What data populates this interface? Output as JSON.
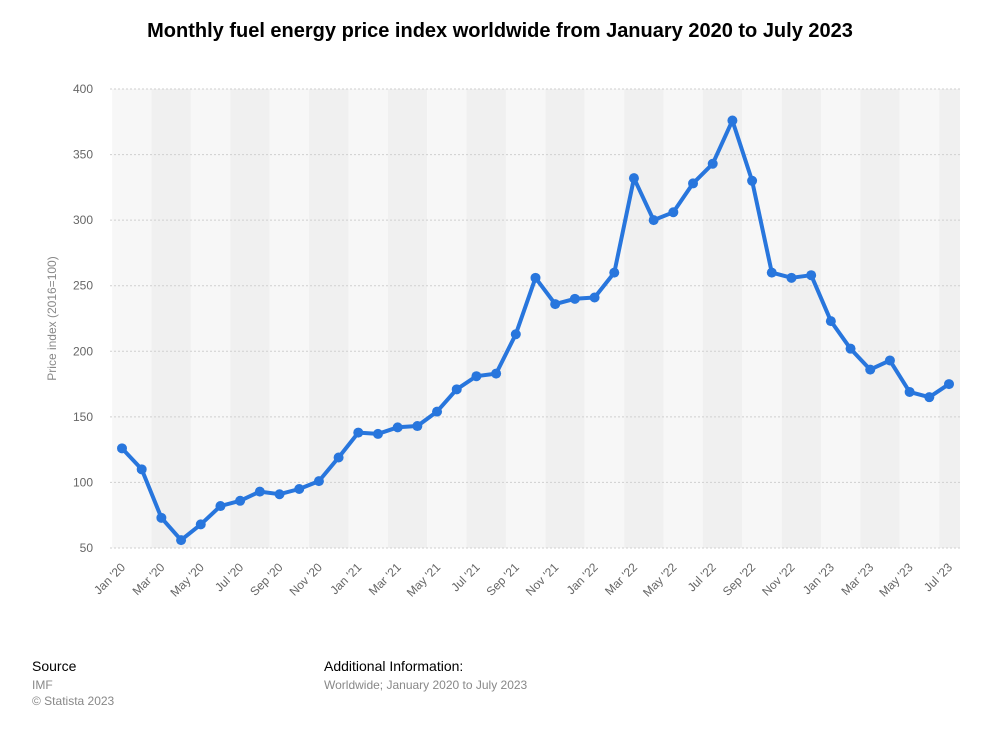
{
  "chart_data": {
    "type": "line",
    "title": "Monthly fuel energy price index worldwide from January 2020 to July 2023",
    "xlabel": "",
    "ylabel": "Price index (2016=100)",
    "ylim": [
      50,
      400
    ],
    "yticks": [
      50,
      100,
      150,
      200,
      250,
      300,
      350,
      400
    ],
    "grid": true,
    "color": "#2876dd",
    "x": [
      "Jan '20",
      "Feb '20",
      "Mar '20",
      "Apr '20",
      "May '20",
      "Jun '20",
      "Jul '20",
      "Aug '20",
      "Sep '20",
      "Oct '20",
      "Nov '20",
      "Dec '20",
      "Jan '21",
      "Feb '21",
      "Mar '21",
      "Apr '21",
      "May '21",
      "Jun '21",
      "Jul '21",
      "Aug '21",
      "Sep '21",
      "Oct '21",
      "Nov '21",
      "Dec '21",
      "Jan '22",
      "Feb '22",
      "Mar '22",
      "Apr '22",
      "May '22",
      "Jun '22",
      "Jul '22",
      "Aug '22",
      "Sep '22",
      "Oct '22",
      "Nov '22",
      "Dec '22",
      "Jan '23",
      "Feb '23",
      "Mar '23",
      "Apr '23",
      "May '23",
      "Jun '23",
      "Jul '23"
    ],
    "xtick_labels": [
      "Jan '20",
      "Mar '20",
      "May '20",
      "Jul '20",
      "Sep '20",
      "Nov '20",
      "Jan '21",
      "Mar '21",
      "May '21",
      "Jul '21",
      "Sep '21",
      "Nov '21",
      "Jan '22",
      "Mar '22",
      "May '22",
      "Jul '22",
      "Sep '22",
      "Nov '22",
      "Jan '23",
      "Mar '23",
      "May '23",
      "Jul '23"
    ],
    "series": [
      {
        "values": [
          126,
          110,
          73,
          56,
          68,
          82,
          86,
          93,
          91,
          95,
          101,
          119,
          138,
          137,
          142,
          143,
          154,
          171,
          181,
          183,
          213,
          256,
          236,
          240,
          241,
          260,
          332,
          300,
          306,
          328,
          343,
          376,
          330,
          260,
          256,
          258,
          223,
          202,
          186,
          193,
          169,
          165,
          175
        ]
      }
    ]
  },
  "footer": {
    "source_heading": "Source",
    "source_name": "IMF",
    "copyright": "© Statista 2023",
    "additional_heading": "Additional Information:",
    "additional_text": "Worldwide; January 2020 to July 2023"
  }
}
